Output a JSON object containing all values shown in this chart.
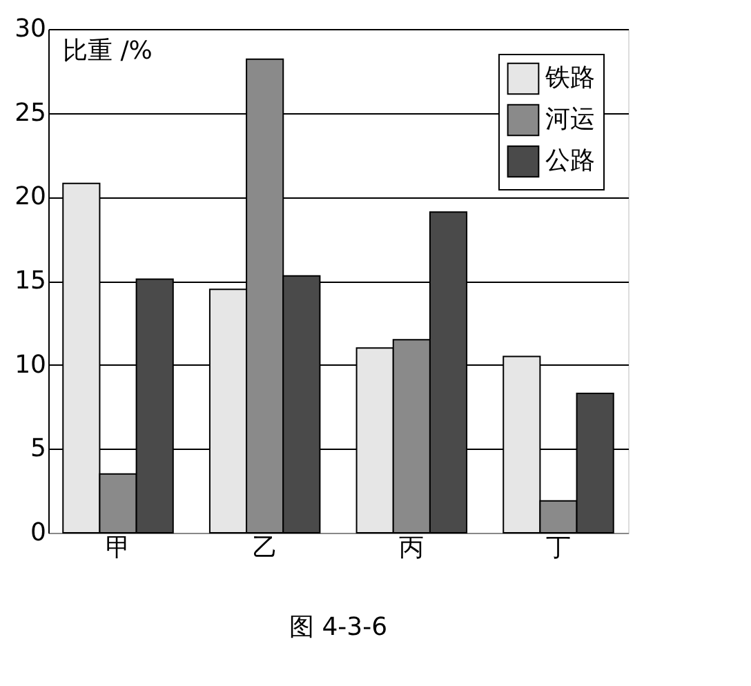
{
  "chart_data": {
    "type": "bar",
    "ylabel": "比重 /%",
    "categories": [
      "甲",
      "乙",
      "丙",
      "丁"
    ],
    "series": [
      {
        "name": "铁路",
        "color": "#e6e6e6",
        "values": [
          20.8,
          14.5,
          11.0,
          10.5
        ]
      },
      {
        "name": "河运",
        "color": "#8a8a8a",
        "values": [
          3.5,
          28.2,
          11.5,
          1.9
        ]
      },
      {
        "name": "公路",
        "color": "#4a4a4a",
        "values": [
          15.1,
          15.3,
          19.1,
          8.3
        ]
      }
    ],
    "ylim": [
      0,
      30
    ],
    "yticks": [
      0,
      5,
      10,
      15,
      20,
      25,
      30
    ],
    "grid": "y",
    "legend": "top right",
    "annotations": [
      "图 4-3-6"
    ]
  }
}
